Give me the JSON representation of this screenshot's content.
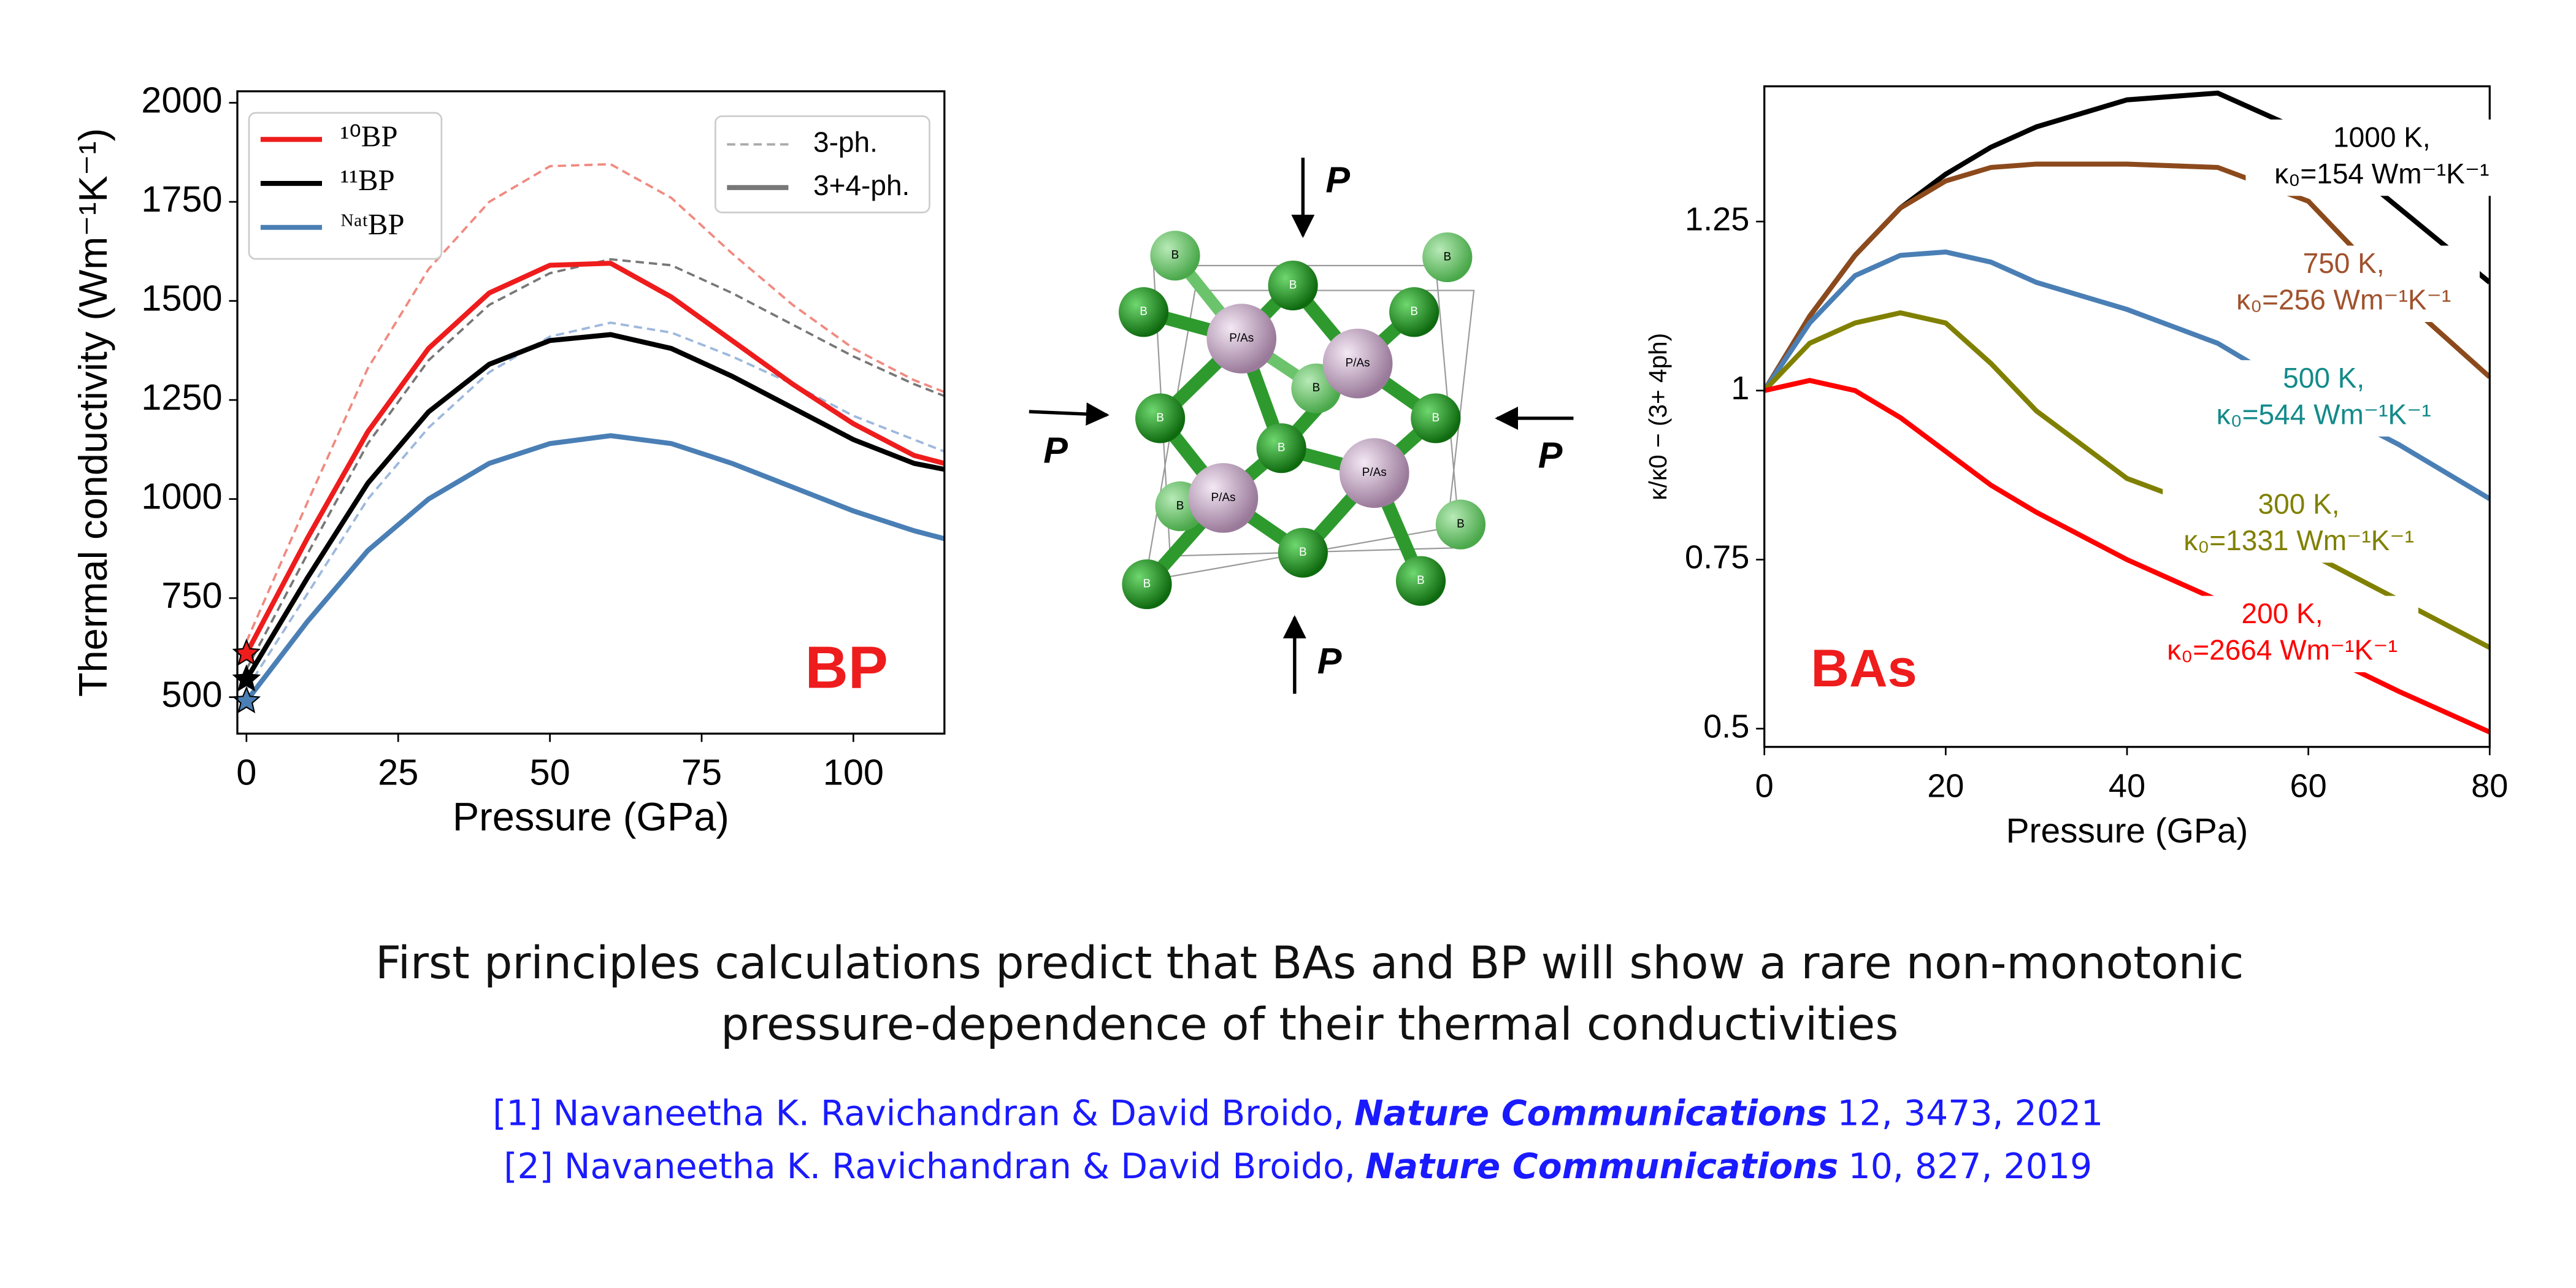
{
  "chart_data": [
    {
      "type": "line",
      "xlabel": "Pressure (GPa)",
      "ylabel": "Thermal conductivity (Wm⁻¹K⁻¹)",
      "xlim": [
        -1.5,
        115
      ],
      "ylim": [
        408,
        2029
      ],
      "xticks": [
        0,
        25,
        50,
        75,
        100
      ],
      "yticks": [
        500,
        750,
        1000,
        1250,
        1500,
        1750,
        2000
      ],
      "x": [
        0,
        10,
        20,
        30,
        40,
        50,
        60,
        70,
        80,
        90,
        100,
        110,
        115
      ],
      "series": [
        {
          "name": "¹⁰BP",
          "color": "#ee1c1c",
          "marker": "star",
          "values": [
            610,
            900,
            1170,
            1380,
            1520,
            1590,
            1595,
            1510,
            1400,
            1290,
            1190,
            1110,
            1090
          ]
        },
        {
          "name": "¹¹BP",
          "color": "#000000",
          "marker": "star",
          "values": [
            545,
            800,
            1040,
            1220,
            1340,
            1400,
            1415,
            1380,
            1310,
            1230,
            1150,
            1090,
            1075
          ]
        },
        {
          "name": "ᴺᵃᵗBP",
          "color": "#4a7fb5",
          "marker": "star",
          "values": [
            490,
            690,
            870,
            1000,
            1090,
            1140,
            1160,
            1140,
            1090,
            1030,
            970,
            920,
            900
          ]
        },
        {
          "color": "#f08a80",
          "dash": true,
          "values": [
            640,
            990,
            1330,
            1580,
            1750,
            1840,
            1845,
            1760,
            1620,
            1490,
            1380,
            1300,
            1270
          ]
        },
        {
          "color": "#777777",
          "dash": true,
          "values": [
            570,
            860,
            1140,
            1350,
            1490,
            1570,
            1605,
            1590,
            1520,
            1440,
            1360,
            1290,
            1260
          ]
        },
        {
          "color": "#9db8dd",
          "dash": true,
          "values": [
            520,
            760,
            1000,
            1180,
            1320,
            1410,
            1445,
            1420,
            1360,
            1290,
            1210,
            1150,
            1120
          ]
        }
      ],
      "line_style_legend": [
        {
          "label": "3-ph.",
          "dash": true,
          "color": "#aaaaaa"
        },
        {
          "label": "3+4-ph.",
          "dash": false,
          "color": "#777777"
        }
      ],
      "annotation": {
        "text": "BP",
        "color": "#ee1c1c"
      }
    },
    {
      "type": "line",
      "xlabel": "Pressure (GPa)",
      "ylabel": "κ/κ0 − (3+ 4ph)",
      "xlim": [
        0,
        80
      ],
      "ylim": [
        0.473,
        1.45
      ],
      "xticks": [
        0,
        20,
        40,
        60,
        80
      ],
      "yticks": [
        0.5,
        0.75,
        1,
        1.25
      ],
      "x": [
        0,
        5,
        10,
        15,
        20,
        25,
        30,
        40,
        50,
        60,
        70,
        80
      ],
      "series": [
        {
          "name": "1000 K,",
          "note": "κ₀=154 Wm⁻¹K⁻¹",
          "color": "#000000",
          "label_color": "#000000",
          "values": [
            1,
            1.11,
            1.2,
            1.27,
            1.32,
            1.36,
            1.39,
            1.43,
            1.44,
            1.38,
            1.27,
            1.16
          ]
        },
        {
          "name": "750 K,",
          "note": "κ₀=256 Wm⁻¹K⁻¹",
          "color": "#8c4a1c",
          "label_color": "#a0522d",
          "values": [
            1,
            1.11,
            1.2,
            1.27,
            1.31,
            1.33,
            1.335,
            1.335,
            1.33,
            1.28,
            1.14,
            1.02
          ]
        },
        {
          "name": "500 K,",
          "note": "κ₀=544 Wm⁻¹K⁻¹",
          "color": "#4a7fb5",
          "label_color": "#138a8a",
          "values": [
            1,
            1.1,
            1.17,
            1.2,
            1.205,
            1.19,
            1.16,
            1.12,
            1.07,
            0.99,
            0.92,
            0.84
          ]
        },
        {
          "name": "300 K,",
          "note": "κ₀=1331 Wm⁻¹K⁻¹",
          "color": "#808000",
          "label_color": "#808000",
          "values": [
            1,
            1.07,
            1.1,
            1.115,
            1.1,
            1.04,
            0.97,
            0.87,
            0.82,
            0.76,
            0.69,
            0.62
          ]
        },
        {
          "name": "200 K,",
          "note": "κ₀=2664 Wm⁻¹K⁻¹",
          "color": "#ff0000",
          "label_color": "#ff0000",
          "values": [
            1,
            1.015,
            1.0,
            0.96,
            0.91,
            0.86,
            0.82,
            0.75,
            0.69,
            0.62,
            0.555,
            0.495
          ]
        }
      ],
      "annotation": {
        "text": "BAs",
        "color": "#ee1c1c"
      }
    }
  ],
  "diagram": {
    "force_label": "P",
    "boron_label": "B",
    "pnictogen_label": "P/As"
  },
  "caption": [
    "First principles calculations predict that BAs and BP will show a rare non-monotonic",
    "pressure-dependence of their thermal conductivities"
  ],
  "references": [
    {
      "prefix": "[1] Navaneetha K. Ravichandran & David Broido,",
      "journal": "Nature Communications",
      "details": "12, 3473, 2021"
    },
    {
      "prefix": "[2] Navaneetha K. Ravichandran & David Broido,",
      "journal": "Nature Communications",
      "details": "10, 827, 2019"
    }
  ]
}
